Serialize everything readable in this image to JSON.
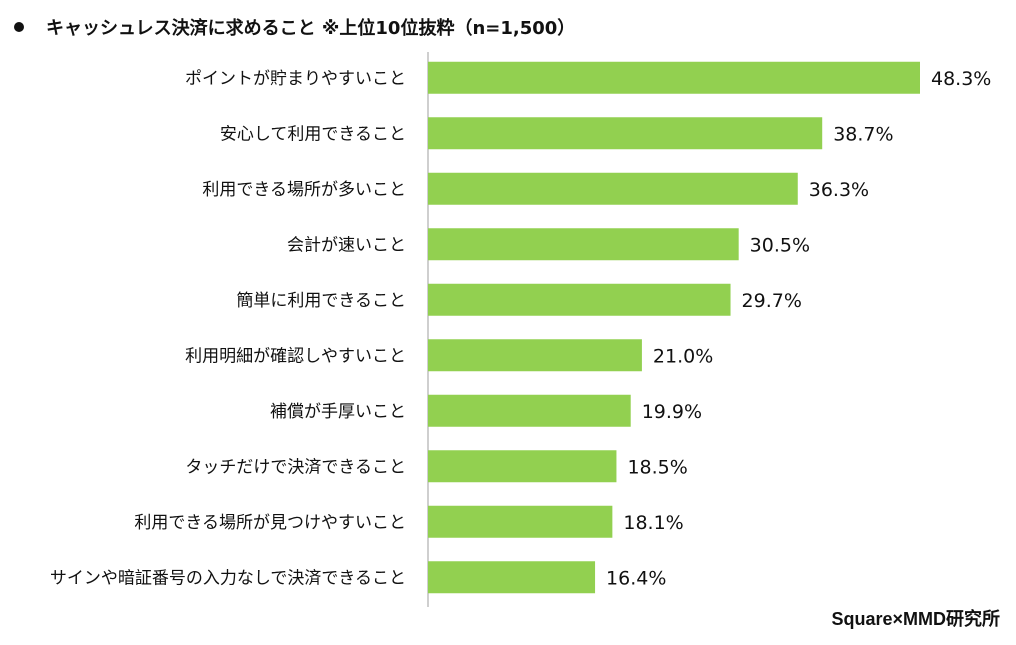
{
  "header": {
    "title": "キャッシュレス決済に求めること ※上位10位抜粋（n=1,500）"
  },
  "footer": {
    "source": "Square×MMD研究所"
  },
  "colors": {
    "bar": "#92d050",
    "axis": "#bfbfbf",
    "text": "#111111"
  },
  "chart_data": {
    "type": "bar",
    "orientation": "horizontal",
    "categories": [
      "ポイントが貯まりやすいこと",
      "安心して利用できること",
      "利用できる場所が多いこと",
      "会計が速いこと",
      "簡単に利用できること",
      "利用明細が確認しやすいこと",
      "補償が手厚いこと",
      "タッチだけで決済できること",
      "利用できる場所が見つけやすいこと",
      "サインや暗証番号の入力なしで決済できること"
    ],
    "values": [
      48.3,
      38.7,
      36.3,
      30.5,
      29.7,
      21.0,
      19.9,
      18.5,
      18.1,
      16.4
    ],
    "value_labels": [
      "48.3%",
      "38.7%",
      "36.3%",
      "30.5%",
      "29.7%",
      "21.0%",
      "19.9%",
      "18.5%",
      "18.1%",
      "16.4%"
    ],
    "xlim": [
      0,
      50
    ],
    "grid": false,
    "legend": "none"
  }
}
